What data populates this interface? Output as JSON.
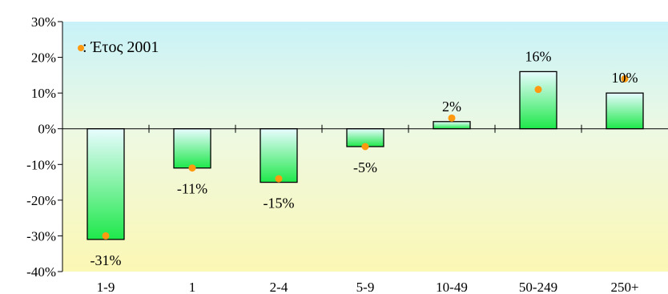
{
  "chart_data": {
    "type": "bar",
    "categories": [
      "1-9",
      "1",
      "2-4",
      "5-9",
      "10-49",
      "50-249",
      "250+"
    ],
    "series": [
      {
        "values": [
          -31,
          -11,
          -15,
          -5,
          2,
          16,
          10
        ]
      },
      {
        "name": ": Έτος 2001",
        "marker": "dot",
        "values": [
          -30,
          -11,
          -14,
          -5,
          3,
          11,
          14
        ]
      }
    ],
    "data_labels": [
      "-31%",
      "-11%",
      "-15%",
      "-5%",
      "2%",
      "16%",
      "10%"
    ],
    "yticks": [
      30,
      20,
      10,
      0,
      -10,
      -20,
      -30,
      -40
    ],
    "ytick_labels": [
      "30%",
      "20%",
      "10%",
      "0%",
      "-10%",
      "-20%",
      "-30%",
      "-40%"
    ],
    "ylim": [
      -40,
      30
    ],
    "legend": {
      "label": ": Έτος 2001",
      "placement": "top-left"
    },
    "grid": false,
    "colors": {
      "bar_top": "#e8fcff",
      "bar_bottom": "#1ee84a",
      "dot": "#ff9a10",
      "bg_top": "#c8f2f8",
      "bg_bottom": "#fbf7b4",
      "axis": "#000000"
    }
  }
}
